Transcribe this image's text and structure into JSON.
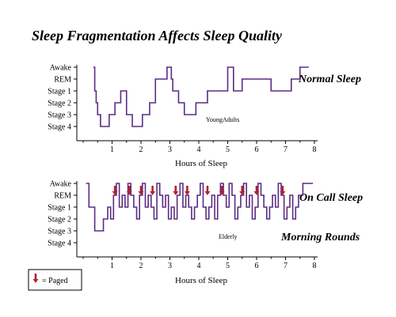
{
  "title": "Sleep Fragmentation Affects Sleep Quality",
  "colors": {
    "trace": "#5b2c82",
    "arrow": "#b3212e",
    "axis": "#000000"
  },
  "legend": {
    "symbol": "down-arrow",
    "text": "= Paged"
  },
  "chart_data": [
    {
      "type": "line",
      "step": true,
      "title": "Normal Sleep",
      "annotation": "YoungAdults",
      "xlabel": "Hours of Sleep",
      "ylabel": "",
      "xlim": [
        0,
        8
      ],
      "xticks": [
        "1",
        "2",
        "3",
        "4",
        "5",
        "6",
        "7",
        "8"
      ],
      "yticks": [
        "Awake",
        "REM",
        "Stage 1",
        "Stage 2",
        "Stage 3",
        "Stage 4"
      ],
      "ylim": [
        0,
        5
      ],
      "y_encoding": "0 = Awake, 1 = REM, 2 = Stage 1, 3 = Stage 2, 4 = Stage 3, 5 = Stage 4",
      "x": [
        0.35,
        0.4,
        0.45,
        0.5,
        0.6,
        0.9,
        1.1,
        1.3,
        1.5,
        1.7,
        2.05,
        2.3,
        2.5,
        2.8,
        2.9,
        3.05,
        3.1,
        3.3,
        3.5,
        3.9,
        4.3,
        4.8,
        5.0,
        5.2,
        5.5,
        6.1,
        6.5,
        7.0,
        7.2,
        7.5,
        7.8
      ],
      "values": [
        0,
        2,
        3,
        4,
        5,
        4,
        3,
        2,
        4,
        5,
        4,
        3,
        1,
        1,
        0,
        1,
        2,
        3,
        4,
        3,
        2,
        2,
        0,
        2,
        1,
        1,
        2,
        2,
        1,
        0,
        0
      ]
    },
    {
      "type": "line",
      "step": true,
      "title": "On Call Sleep",
      "subtitle": "Morning Rounds",
      "annotation": "Elderly",
      "xlabel": "Hours of Sleep",
      "ylabel": "",
      "xlim": [
        0,
        8
      ],
      "xticks": [
        "1",
        "2",
        "3",
        "4",
        "5",
        "6",
        "7",
        "8"
      ],
      "yticks": [
        "Awake",
        "REM",
        "Stage 1",
        "Stage 2",
        "Stage 3",
        "Stage 4"
      ],
      "ylim": [
        0,
        5
      ],
      "y_encoding": "0 = Awake, 1 = REM, 2 = Stage 1, 3 = Stage 2, 4 = Stage 3, 5 = Stage 4",
      "x": [
        0.1,
        0.2,
        0.4,
        0.6,
        0.7,
        0.85,
        0.95,
        1.05,
        1.15,
        1.25,
        1.35,
        1.45,
        1.55,
        1.65,
        1.75,
        1.85,
        1.95,
        2.05,
        2.15,
        2.25,
        2.35,
        2.45,
        2.55,
        2.65,
        2.75,
        2.85,
        2.95,
        3.05,
        3.15,
        3.25,
        3.35,
        3.45,
        3.55,
        3.65,
        3.75,
        3.85,
        3.95,
        4.05,
        4.15,
        4.25,
        4.35,
        4.45,
        4.55,
        4.65,
        4.75,
        4.85,
        4.95,
        5.05,
        5.15,
        5.25,
        5.35,
        5.45,
        5.55,
        5.65,
        5.75,
        5.85,
        5.95,
        6.05,
        6.15,
        6.25,
        6.35,
        6.45,
        6.55,
        6.65,
        6.75,
        6.85,
        6.95,
        7.05,
        7.15,
        7.25,
        7.35,
        7.45,
        7.6,
        7.75,
        7.95
      ],
      "values": [
        0,
        2,
        4,
        4,
        3,
        2,
        3,
        1,
        0,
        2,
        1,
        2,
        0,
        1,
        2,
        3,
        1,
        0,
        2,
        1,
        2,
        3,
        0,
        1,
        2,
        1,
        3,
        2,
        3,
        1,
        0,
        2,
        1,
        2,
        3,
        2,
        1,
        0,
        2,
        3,
        2,
        1,
        3,
        1,
        0,
        1,
        2,
        0,
        1,
        3,
        2,
        1,
        0,
        2,
        1,
        3,
        2,
        0,
        1,
        2,
        3,
        2,
        1,
        2,
        0,
        1,
        3,
        2,
        1,
        3,
        2,
        1,
        0,
        0,
        0
      ],
      "paged_at": [
        1.1,
        1.6,
        2.0,
        2.4,
        3.2,
        3.6,
        4.3,
        4.8,
        5.5,
        6.0,
        6.9
      ]
    }
  ]
}
